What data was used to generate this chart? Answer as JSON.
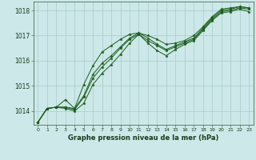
{
  "title": "Graphe pression niveau de la mer (hPa)",
  "bg_color": "#cce8e8",
  "grid_color": "#a8cccc",
  "line_color": "#1a5c1a",
  "marker_color": "#1a5c1a",
  "xlim": [
    -0.5,
    23.5
  ],
  "ylim": [
    1013.45,
    1018.35
  ],
  "yticks": [
    1014,
    1015,
    1016,
    1017,
    1018
  ],
  "xticks": [
    0,
    1,
    2,
    3,
    4,
    5,
    6,
    7,
    8,
    9,
    10,
    11,
    12,
    13,
    14,
    15,
    16,
    17,
    18,
    19,
    20,
    21,
    22,
    23
  ],
  "series": [
    [
      1013.55,
      1014.1,
      1014.15,
      1014.1,
      1014.0,
      1014.3,
      1015.05,
      1015.5,
      1015.85,
      1016.25,
      1016.7,
      1017.05,
      1016.7,
      1016.4,
      1016.2,
      1016.45,
      1016.65,
      1016.8,
      1017.2,
      1017.6,
      1017.9,
      1017.95,
      1018.05,
      1017.95
    ],
    [
      1013.55,
      1014.1,
      1014.15,
      1014.15,
      1014.05,
      1014.55,
      1015.3,
      1015.75,
      1016.1,
      1016.5,
      1016.85,
      1017.05,
      1016.8,
      1016.6,
      1016.4,
      1016.55,
      1016.7,
      1016.85,
      1017.25,
      1017.65,
      1017.95,
      1018.0,
      1018.1,
      1018.05
    ],
    [
      1013.55,
      1014.1,
      1014.15,
      1014.15,
      1014.1,
      1014.6,
      1015.45,
      1015.9,
      1016.2,
      1016.55,
      1016.9,
      1017.1,
      1016.9,
      1016.65,
      1016.45,
      1016.6,
      1016.75,
      1016.9,
      1017.3,
      1017.7,
      1018.0,
      1018.05,
      1018.15,
      1018.1
    ],
    [
      1013.55,
      1014.1,
      1014.15,
      1014.45,
      1014.1,
      1015.05,
      1015.8,
      1016.35,
      1016.6,
      1016.85,
      1017.05,
      1017.1,
      1017.0,
      1016.85,
      1016.65,
      1016.7,
      1016.8,
      1017.0,
      1017.35,
      1017.75,
      1018.05,
      1018.1,
      1018.15,
      1018.1
    ]
  ]
}
